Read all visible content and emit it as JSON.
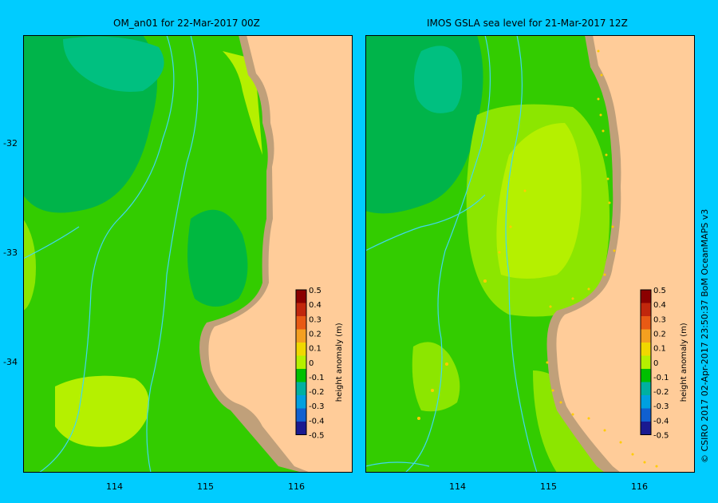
{
  "panels": [
    {
      "title": "OM_an01  for 22-Mar-2017 00Z"
    },
    {
      "title": "IMOS GSLA sea level  for 21-Mar-2017 12Z"
    }
  ],
  "y_ticks": [
    "-32",
    "-33",
    "-34"
  ],
  "x_ticks": [
    "114",
    "115",
    "116"
  ],
  "colorbar": {
    "label": "height anomaly (m)",
    "ticks": [
      "0.5",
      "0.4",
      "0.3",
      "0.2",
      "0.1",
      "0",
      "-0.1",
      "-0.2",
      "-0.3",
      "-0.4",
      "-0.5"
    ],
    "colors": [
      "#8b0000",
      "#c1270c",
      "#e85a14",
      "#f4a020",
      "#f0d800",
      "#b5f000",
      "#00c000",
      "#00b0a0",
      "#00a0e0",
      "#1060d0",
      "#1a1a90"
    ]
  },
  "credit": "© CSIRO 2017   02-Apr-2017 23:50:37 BoM OceanMAPS v3",
  "colors": {
    "background": "#00ccff",
    "land": "#ffcc99",
    "shelf": "#c0a07a",
    "contour": "#40d8f0"
  }
}
